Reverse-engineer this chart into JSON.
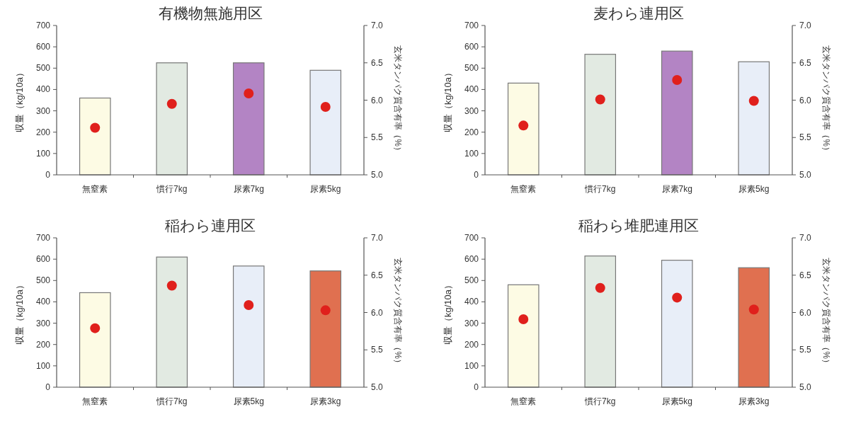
{
  "chart_data": [
    {
      "type": "bar",
      "title": "有機物無施用区",
      "ylabel": "収量（kg/10a）",
      "y2label": "玄米タンパク質含有率（%）",
      "categories": [
        "無窒素",
        "慣行7kg",
        "尿素7kg",
        "尿素5kg"
      ],
      "series": [
        {
          "colors": [
            "#fdfbe4",
            "#e2eae2",
            "#b384c4",
            "#e8eef8"
          ],
          "values": [
            360,
            525,
            525,
            490
          ]
        },
        {
          "type": "scatter",
          "axis": "y2",
          "color": "#e0201c",
          "marker": "circle",
          "values": [
            5.63,
            5.95,
            6.09,
            5.91
          ]
        }
      ],
      "ylim": [
        0,
        700
      ],
      "yticks": [
        0,
        100,
        200,
        300,
        400,
        500,
        600,
        700
      ],
      "y2lim": [
        5,
        7
      ],
      "y2ticks": [
        {
          "value": 5,
          "label": "5.0"
        },
        {
          "value": 5.5,
          "label": "5.5"
        },
        {
          "value": 6,
          "label": "6.0"
        },
        {
          "value": 6.5,
          "label": "6.5"
        },
        {
          "value": 7,
          "label": "7.0"
        }
      ],
      "grid": false
    },
    {
      "type": "bar",
      "title": "麦わら連用区",
      "ylabel": "収量（kg/10a）",
      "y2label": "玄米タンパク質含有率（%）",
      "categories": [
        "無窒素",
        "慣行7kg",
        "尿素7kg",
        "尿素5kg"
      ],
      "series": [
        {
          "colors": [
            "#fdfbe4",
            "#e2eae2",
            "#b384c4",
            "#e8eef8"
          ],
          "values": [
            430,
            565,
            580,
            530
          ]
        },
        {
          "type": "scatter",
          "axis": "y2",
          "color": "#e0201c",
          "marker": "circle",
          "values": [
            5.66,
            6.01,
            6.27,
            5.99
          ]
        }
      ],
      "ylim": [
        0,
        700
      ],
      "yticks": [
        0,
        100,
        200,
        300,
        400,
        500,
        600,
        700
      ],
      "y2lim": [
        5,
        7
      ],
      "y2ticks": [
        {
          "value": 5,
          "label": "5.0"
        },
        {
          "value": 5.5,
          "label": "5.5"
        },
        {
          "value": 6,
          "label": "6.0"
        },
        {
          "value": 6.5,
          "label": "6.5"
        },
        {
          "value": 7,
          "label": "7.0"
        }
      ],
      "grid": false
    },
    {
      "type": "bar",
      "title": "稲わら連用区",
      "ylabel": "収量（kg/10a）",
      "y2label": "玄米タンパク質含有率（%）",
      "categories": [
        "無窒素",
        "慣行7kg",
        "尿素5kg",
        "尿素3kg"
      ],
      "series": [
        {
          "colors": [
            "#fdfbe4",
            "#e2eae2",
            "#e8eef8",
            "#e07050"
          ],
          "values": [
            443,
            610,
            568,
            545
          ]
        },
        {
          "type": "scatter",
          "axis": "y2",
          "color": "#e0201c",
          "marker": "circle",
          "values": [
            5.79,
            6.36,
            6.1,
            6.03
          ]
        }
      ],
      "ylim": [
        0,
        700
      ],
      "yticks": [
        0,
        100,
        200,
        300,
        400,
        500,
        600,
        700
      ],
      "y2lim": [
        5,
        7
      ],
      "y2ticks": [
        {
          "value": 5,
          "label": "5.0"
        },
        {
          "value": 5.5,
          "label": "5.5"
        },
        {
          "value": 6,
          "label": "6.0"
        },
        {
          "value": 6.5,
          "label": "6.5"
        },
        {
          "value": 7,
          "label": "7.0"
        }
      ],
      "grid": false
    },
    {
      "type": "bar",
      "title": "稲わら堆肥連用区",
      "ylabel": "収量（kg/10a）",
      "y2label": "玄米タンパク質含有率（%）",
      "categories": [
        "無窒素",
        "慣行7kg",
        "尿素5kg",
        "尿素3kg"
      ],
      "series": [
        {
          "colors": [
            "#fdfbe4",
            "#e2eae2",
            "#e8eef8",
            "#e07050"
          ],
          "values": [
            480,
            615,
            595,
            560
          ]
        },
        {
          "type": "scatter",
          "axis": "y2",
          "color": "#e0201c",
          "marker": "circle",
          "values": [
            5.91,
            6.33,
            6.2,
            6.04
          ]
        }
      ],
      "ylim": [
        0,
        700
      ],
      "yticks": [
        0,
        100,
        200,
        300,
        400,
        500,
        600,
        700
      ],
      "y2lim": [
        5,
        7
      ],
      "y2ticks": [
        {
          "value": 5,
          "label": "5.0"
        },
        {
          "value": 5.5,
          "label": "5.5"
        },
        {
          "value": 6,
          "label": "6.0"
        },
        {
          "value": 6.5,
          "label": "6.5"
        },
        {
          "value": 7,
          "label": "7.0"
        }
      ],
      "grid": false
    }
  ]
}
